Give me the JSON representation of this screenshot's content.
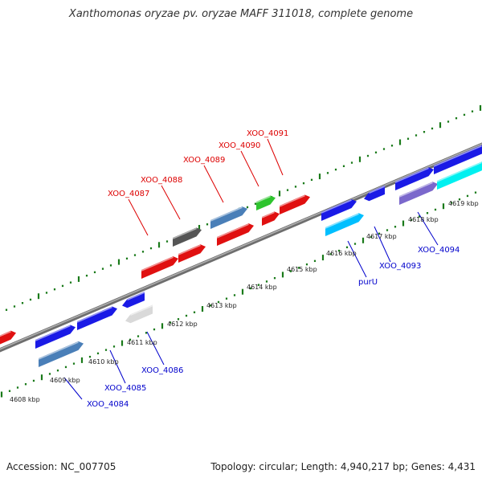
{
  "title": "Xanthomonas oryzae pv. oryzae MAFF 311018, complete genome",
  "footer": {
    "accession": "Accession: NC_007705",
    "topology": "Topology: circular; Length: 4,940,217 bp; Genes: 4,431"
  },
  "colors": {
    "forward_label": "#dd0000",
    "reverse_label": "#0000cc",
    "backbone": "#808080",
    "tick": "#1a7a1a"
  },
  "kbp_ticks": [
    "4608 kbp",
    "4609 kbp",
    "4610 kbp",
    "4611 kbp",
    "4612 kbp",
    "4613 kbp",
    "4614 kbp",
    "4615 kbp",
    "4616 kbp",
    "4617 kbp",
    "4618 kbp",
    "4619 kbp"
  ],
  "forward_gene_labels": [
    "XOO_4087",
    "XOO_4088",
    "XOO_4089",
    "XOO_4090",
    "XOO_4091"
  ],
  "reverse_gene_labels": [
    "XOO_4084",
    "XOO_4085",
    "XOO_4086",
    "purU",
    "XOO_4093",
    "XOO_4094"
  ]
}
